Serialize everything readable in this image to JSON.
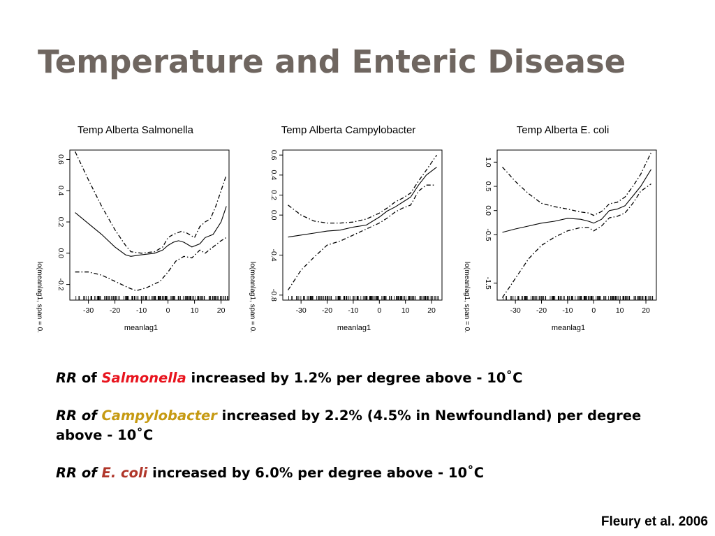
{
  "slide": {
    "title": "Temperature and Enteric Disease",
    "citation": "Fleury et al. 2006"
  },
  "colors": {
    "salmonella": "#e8141e",
    "campylobacter": "#c69a12",
    "ecoli": "#b0362a",
    "title": "#6f6660"
  },
  "statements": [
    {
      "rr": "RR",
      "of": " of ",
      "organism": "Salmonella",
      "organism_color": "#e8141e",
      "text": " increased by 1.2% per degree above - 10˚C"
    },
    {
      "rr": "RR of",
      "of": " ",
      "organism": "Campylobacter",
      "organism_color": "#c69a12",
      "text": " increased by 2.2% (4.5% in Newfoundland) per degree above - 10˚C"
    },
    {
      "rr": "RR of",
      "of": " ",
      "organism": "E. coli",
      "organism_color": "#b0362a",
      "text": " increased by 6.0% per degree above - 10˚C"
    }
  ],
  "chart_data": [
    {
      "type": "line",
      "title": "Temp Alberta Salmonella",
      "xlabel": "meanlag1",
      "ylabel": "lo(meanlag1, span = 0.",
      "xticks": [
        -30,
        -20,
        -10,
        0,
        10,
        20
      ],
      "yticks": [
        "-0.2",
        "0.0",
        "0.2",
        "0.4",
        "0.6"
      ],
      "xlim": [
        -37,
        23
      ],
      "ylim": [
        -0.3,
        0.66
      ],
      "grid": false,
      "legend": "none",
      "series": [
        {
          "role": "fit",
          "style": "solid",
          "x": [
            -35,
            -30,
            -25,
            -20,
            -16,
            -14,
            -10,
            -5,
            -2,
            0,
            2,
            4,
            6,
            9,
            12,
            14,
            17,
            20,
            22
          ],
          "y": [
            0.26,
            0.19,
            0.12,
            0.04,
            -0.01,
            -0.02,
            -0.01,
            0.0,
            0.02,
            0.05,
            0.07,
            0.08,
            0.07,
            0.04,
            0.06,
            0.1,
            0.12,
            0.2,
            0.3
          ]
        },
        {
          "role": "upper",
          "style": "dashdot",
          "x": [
            -35,
            -30,
            -25,
            -20,
            -16,
            -14,
            -10,
            -5,
            -2,
            0,
            2,
            5,
            7,
            10,
            12,
            14,
            16,
            18,
            22
          ],
          "y": [
            0.65,
            0.47,
            0.3,
            0.15,
            0.05,
            0.01,
            0.0,
            0.01,
            0.04,
            0.1,
            0.12,
            0.14,
            0.13,
            0.1,
            0.17,
            0.2,
            0.22,
            0.3,
            0.5
          ]
        },
        {
          "role": "lower",
          "style": "dashdot",
          "x": [
            -35,
            -30,
            -25,
            -20,
            -15,
            -12,
            -8,
            -3,
            0,
            3,
            6,
            9,
            12,
            14,
            17,
            20,
            22
          ],
          "y": [
            -0.12,
            -0.12,
            -0.14,
            -0.18,
            -0.22,
            -0.24,
            -0.22,
            -0.18,
            -0.12,
            -0.05,
            -0.02,
            -0.03,
            0.02,
            0.0,
            0.04,
            0.08,
            0.1
          ]
        }
      ],
      "rug": true
    },
    {
      "type": "line",
      "title": "Temp Alberta Campylobacter",
      "xlabel": "meanlag1",
      "ylabel": "lo(meanlag1, span = 0.",
      "xticks": [
        -30,
        -20,
        -10,
        0,
        10,
        20
      ],
      "yticks": [
        "-0.8",
        "-0.4",
        "0.0",
        "0.2",
        "0.4",
        "0.6"
      ],
      "xlim": [
        -37,
        24
      ],
      "ylim": [
        -0.85,
        0.65
      ],
      "grid": false,
      "legend": "none",
      "series": [
        {
          "role": "fit",
          "style": "solid",
          "x": [
            -35,
            -30,
            -25,
            -20,
            -15,
            -10,
            -5,
            0,
            3,
            6,
            9,
            12,
            15,
            18,
            22
          ],
          "y": [
            -0.22,
            -0.2,
            -0.18,
            -0.16,
            -0.15,
            -0.12,
            -0.1,
            -0.02,
            0.04,
            0.08,
            0.13,
            0.18,
            0.3,
            0.4,
            0.48
          ]
        },
        {
          "role": "upper",
          "style": "dashdot",
          "x": [
            -35,
            -30,
            -25,
            -20,
            -15,
            -10,
            -5,
            0,
            3,
            6,
            9,
            12,
            15,
            18,
            22
          ],
          "y": [
            0.1,
            0.0,
            -0.06,
            -0.08,
            -0.08,
            -0.07,
            -0.04,
            0.02,
            0.07,
            0.13,
            0.17,
            0.22,
            0.34,
            0.45,
            0.6
          ]
        },
        {
          "role": "lower",
          "style": "dashdot",
          "x": [
            -35,
            -30,
            -25,
            -20,
            -15,
            -10,
            -5,
            0,
            3,
            6,
            9,
            12,
            15,
            18,
            21
          ],
          "y": [
            -0.75,
            -0.55,
            -0.42,
            -0.3,
            -0.26,
            -0.2,
            -0.14,
            -0.08,
            -0.03,
            0.03,
            0.07,
            0.1,
            0.24,
            0.3,
            0.3
          ]
        }
      ],
      "rug": true
    },
    {
      "type": "line",
      "title": "Temp Alberta E. coli",
      "xlabel": "meanlag1",
      "ylabel": "lo(meanlag1, span = 0.",
      "xticks": [
        -30,
        -20,
        -10,
        0,
        10,
        20
      ],
      "yticks": [
        "-1.5",
        "-0.5",
        "0.0",
        "0.5",
        "1.0"
      ],
      "xlim": [
        -37,
        24
      ],
      "ylim": [
        -1.85,
        1.25
      ],
      "grid": false,
      "legend": "none",
      "series": [
        {
          "role": "fit",
          "style": "solid",
          "x": [
            -35,
            -30,
            -25,
            -20,
            -15,
            -10,
            -5,
            -2,
            0,
            3,
            6,
            9,
            12,
            15,
            18,
            22
          ],
          "y": [
            -0.45,
            -0.38,
            -0.32,
            -0.26,
            -0.22,
            -0.16,
            -0.18,
            -0.22,
            -0.26,
            -0.18,
            0.0,
            0.03,
            0.1,
            0.3,
            0.5,
            0.85
          ]
        },
        {
          "role": "upper",
          "style": "dashdot",
          "x": [
            -35,
            -30,
            -25,
            -20,
            -15,
            -10,
            -5,
            -2,
            0,
            3,
            6,
            9,
            12,
            15,
            18,
            22
          ],
          "y": [
            0.9,
            0.6,
            0.35,
            0.15,
            0.08,
            0.03,
            -0.03,
            -0.05,
            -0.1,
            -0.02,
            0.14,
            0.17,
            0.28,
            0.5,
            0.75,
            1.2
          ]
        },
        {
          "role": "lower",
          "style": "dashdot",
          "x": [
            -35,
            -30,
            -25,
            -20,
            -15,
            -10,
            -5,
            -2,
            0,
            3,
            6,
            9,
            12,
            15,
            18,
            22
          ],
          "y": [
            -1.8,
            -1.4,
            -1.0,
            -0.72,
            -0.55,
            -0.42,
            -0.35,
            -0.35,
            -0.42,
            -0.32,
            -0.15,
            -0.12,
            -0.05,
            0.15,
            0.4,
            0.55
          ]
        }
      ],
      "rug": true
    }
  ]
}
